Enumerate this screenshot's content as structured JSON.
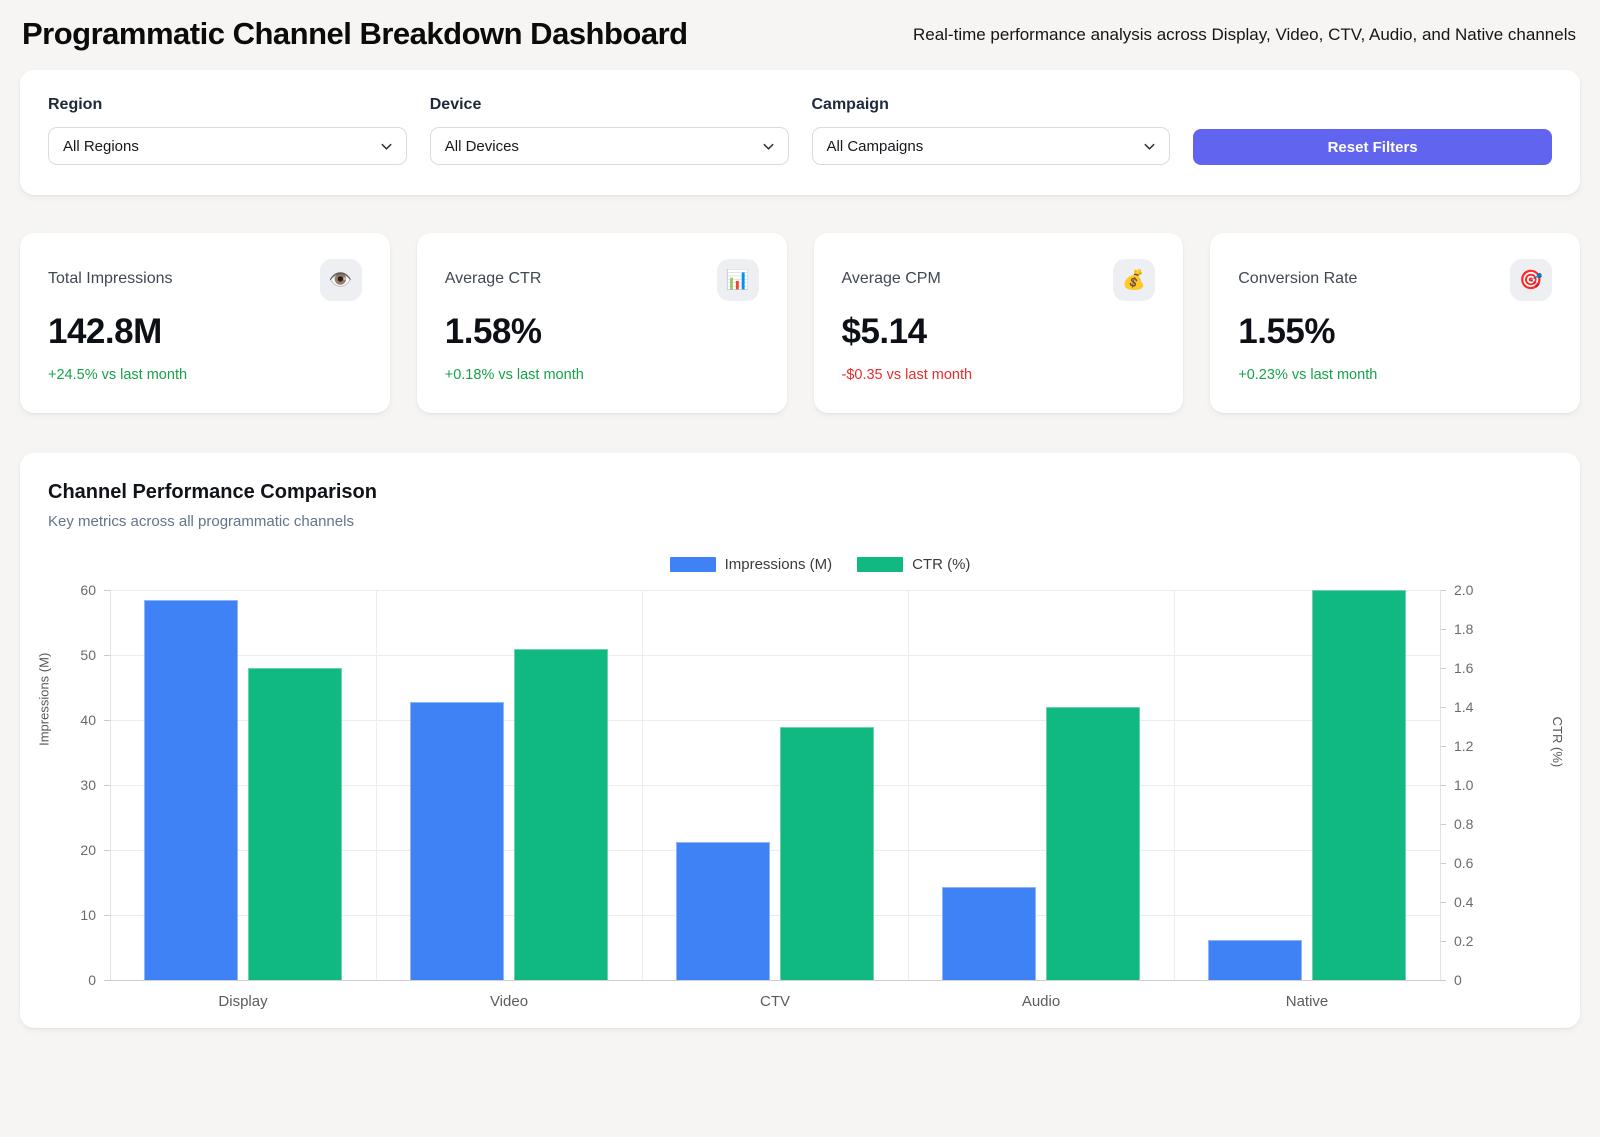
{
  "header": {
    "title": "Programmatic Channel Breakdown Dashboard",
    "subtitle": "Real-time performance analysis across Display, Video, CTV, Audio, and Native channels"
  },
  "filters": {
    "region": {
      "label": "Region",
      "value": "All Regions"
    },
    "device": {
      "label": "Device",
      "value": "All Devices"
    },
    "campaign": {
      "label": "Campaign",
      "value": "All Campaigns"
    },
    "reset_label": "Reset Filters"
  },
  "kpis": [
    {
      "title": "Total Impressions",
      "icon": "eye-icon",
      "glyph": "👁️",
      "value": "142.8M",
      "delta": "+24.5% vs last month",
      "delta_direction": "up"
    },
    {
      "title": "Average CTR",
      "icon": "bar-chart-icon",
      "glyph": "📊",
      "value": "1.58%",
      "delta": "+0.18% vs last month",
      "delta_direction": "up"
    },
    {
      "title": "Average CPM",
      "icon": "money-bag-icon",
      "glyph": "💰",
      "value": "$5.14",
      "delta": "-$0.35 vs last month",
      "delta_direction": "down"
    },
    {
      "title": "Conversion Rate",
      "icon": "target-icon",
      "glyph": "🎯",
      "value": "1.55%",
      "delta": "+0.23% vs last month",
      "delta_direction": "up"
    }
  ],
  "chart_section": {
    "title": "Channel Performance Comparison",
    "subtitle": "Key metrics across all programmatic channels"
  },
  "chart_data": {
    "type": "bar",
    "categories": [
      "Display",
      "Video",
      "CTV",
      "Audio",
      "Native"
    ],
    "series": [
      {
        "name": "Impressions (M)",
        "axis": "left",
        "color": "#3e82f5",
        "values": [
          58.4,
          42.7,
          21.3,
          14.3,
          6.1
        ]
      },
      {
        "name": "CTR (%)",
        "axis": "right",
        "color": "#10b981",
        "values": [
          1.6,
          1.7,
          1.3,
          1.4,
          2.0
        ]
      }
    ],
    "left_axis": {
      "label": "Impressions (M)",
      "min": 0,
      "max": 60,
      "step": 10
    },
    "right_axis": {
      "label": "CTR (%)",
      "min": 0,
      "max": 2.0,
      "step": 0.2
    },
    "legend_position": "top",
    "grid": true
  },
  "colors": {
    "accent": "#6064ef",
    "positive": "#16a34a",
    "negative": "#ea2c2c",
    "bar_blue": "#3e82f5",
    "bar_green": "#10b981"
  }
}
